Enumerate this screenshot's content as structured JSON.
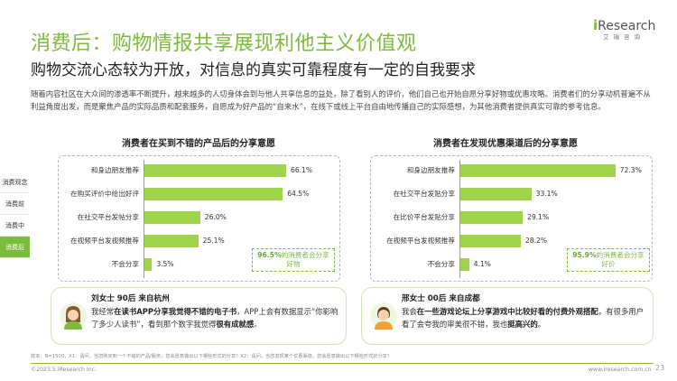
{
  "header": {
    "title": "消费后：购物情报共享展现利他主义价值观",
    "subtitle": "购物交流心态较为开放，对信息的真实可靠程度有一定的自我要求",
    "intro": "随着内容社区在大众间的渗透率不断提升，越来越多的人切身体会到与他人共享信息的益处，除了看别人的评价，他们自己也开始自愿分享好物或优惠攻略。消费者们的分享动机普遍不从利益角度出发，而是聚焦产品的实际品质和配套服务，自愿成为好产品的“自来水”，在线下或线上平台自由地传播自己的实际感想，为其他消费者提供真实可靠的参考信息。"
  },
  "logo": {
    "brand_i": "i",
    "brand_rest": "Research",
    "sub": "艾瑞咨询"
  },
  "sidebar": {
    "items": [
      {
        "label": "消费观念",
        "active": false
      },
      {
        "label": "消费前",
        "active": false
      },
      {
        "label": "消费中",
        "active": false
      },
      {
        "label": "消费后",
        "active": true
      }
    ]
  },
  "chart_data": [
    {
      "type": "bar",
      "title": "消费者在买到不错的产品后的分享意愿",
      "categories": [
        "和身边朋友推荐",
        "在购买评价中给出好评",
        "在社交平台发帖分享",
        "在视频平台发视频推荐",
        "不会分享"
      ],
      "values": [
        66.1,
        64.5,
        26.0,
        25.1,
        3.5
      ],
      "value_labels": [
        "66.1%",
        "64.5%",
        "26.0%",
        "25.1%",
        "3.5%"
      ],
      "xlim": [
        0,
        80
      ],
      "callout": {
        "value": "96.5%",
        "text": "的消费者会分享好物"
      },
      "bar_color": "#9ed34a"
    },
    {
      "type": "bar",
      "title": "消费者在发现优惠渠道后的分享意愿",
      "categories": [
        "和身边朋友推荐",
        "在社交平台发贴分享",
        "在比价平台发贴分享",
        "在视频平台发视频推荐",
        "不会分享"
      ],
      "values": [
        72.3,
        33.1,
        29.1,
        28.2,
        4.1
      ],
      "value_labels": [
        "72.3%",
        "33.1%",
        "29.1%",
        "28.2%",
        "4.1%"
      ],
      "xlim": [
        0,
        80
      ],
      "callout": {
        "value": "95.9%",
        "text": "的消费者会分享好价"
      },
      "bar_color": "#9ed34a"
    }
  ],
  "quotes": [
    {
      "name": "刘女士 90后 来自杭州",
      "parts": [
        {
          "t": "我经常",
          "b": false
        },
        {
          "t": "在读书APP分享我觉得不错的电子书",
          "b": true
        },
        {
          "t": "，APP上会有数据显示“你影响了多少人读书”，看到那个数字我觉得",
          "b": false
        },
        {
          "t": "很有成就感",
          "b": true
        },
        {
          "t": "。",
          "b": false
        }
      ]
    },
    {
      "name": "邢女士 00后 来自成都",
      "parts": [
        {
          "t": "我会",
          "b": false
        },
        {
          "t": "在一些游戏论坛上分享游戏中比较好看的付费外观搭配",
          "b": true
        },
        {
          "t": "，有很多用户看了会夸我的审美很不错，我也",
          "b": false
        },
        {
          "t": "挺高兴的",
          "b": true
        },
        {
          "t": "。",
          "b": false
        }
      ]
    }
  ],
  "footer": {
    "note": "样本：N=1500，X1：请问，当您购买到一个不错的产品/服务，您会愿意做出以下哪些形式的分享？X2：请问，当您发现某个优惠渠道，您会愿意做出以下哪些形式的分享？",
    "copyright": "©2023.5 iResearch Inc.",
    "site": "www.iresearch.com.cn",
    "page": "23"
  },
  "colors": {
    "accent": "#7dbb3c",
    "bar": "#9ed34a",
    "quote_border": "#cfe6b3"
  },
  "icons": {
    "avatar_left": "woman-avatar-icon",
    "avatar_right": "woman-avatar-icon"
  }
}
